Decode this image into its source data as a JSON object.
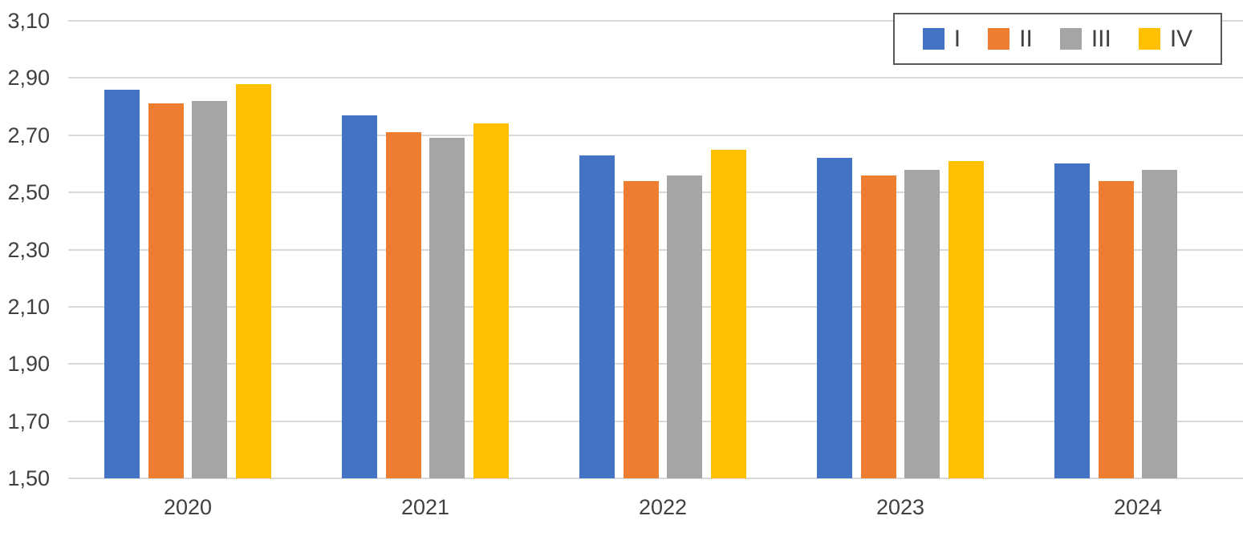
{
  "chart_data": {
    "type": "bar",
    "title": "",
    "categories": [
      "2020",
      "2021",
      "2022",
      "2023",
      "2024"
    ],
    "series": [
      {
        "name": "I",
        "color": "#4472C4",
        "values": [
          2.86,
          2.77,
          2.63,
          2.62,
          2.6
        ]
      },
      {
        "name": "II",
        "color": "#ED7D31",
        "values": [
          2.81,
          2.71,
          2.54,
          2.56,
          2.54
        ]
      },
      {
        "name": "III",
        "color": "#A5A5A5",
        "values": [
          2.82,
          2.69,
          2.56,
          2.58,
          2.58
        ]
      },
      {
        "name": "IV",
        "color": "#FFC000",
        "values": [
          2.88,
          2.74,
          2.65,
          2.61,
          null
        ]
      }
    ],
    "y_axis": {
      "min": 1.5,
      "max": 3.1,
      "step": 0.2,
      "tick_labels": [
        "3,10",
        "2,90",
        "2,70",
        "2,50",
        "2,30",
        "2,10",
        "1,90",
        "1,70",
        "1,50"
      ],
      "decimal_separator": ","
    },
    "xlabel": "",
    "ylabel": "",
    "grid": true,
    "legend_position": "top-right"
  },
  "colors": {
    "gridline": "#D9D9D9",
    "axis_text": "#404040",
    "legend_border": "#595959",
    "background": "#FFFFFF"
  }
}
